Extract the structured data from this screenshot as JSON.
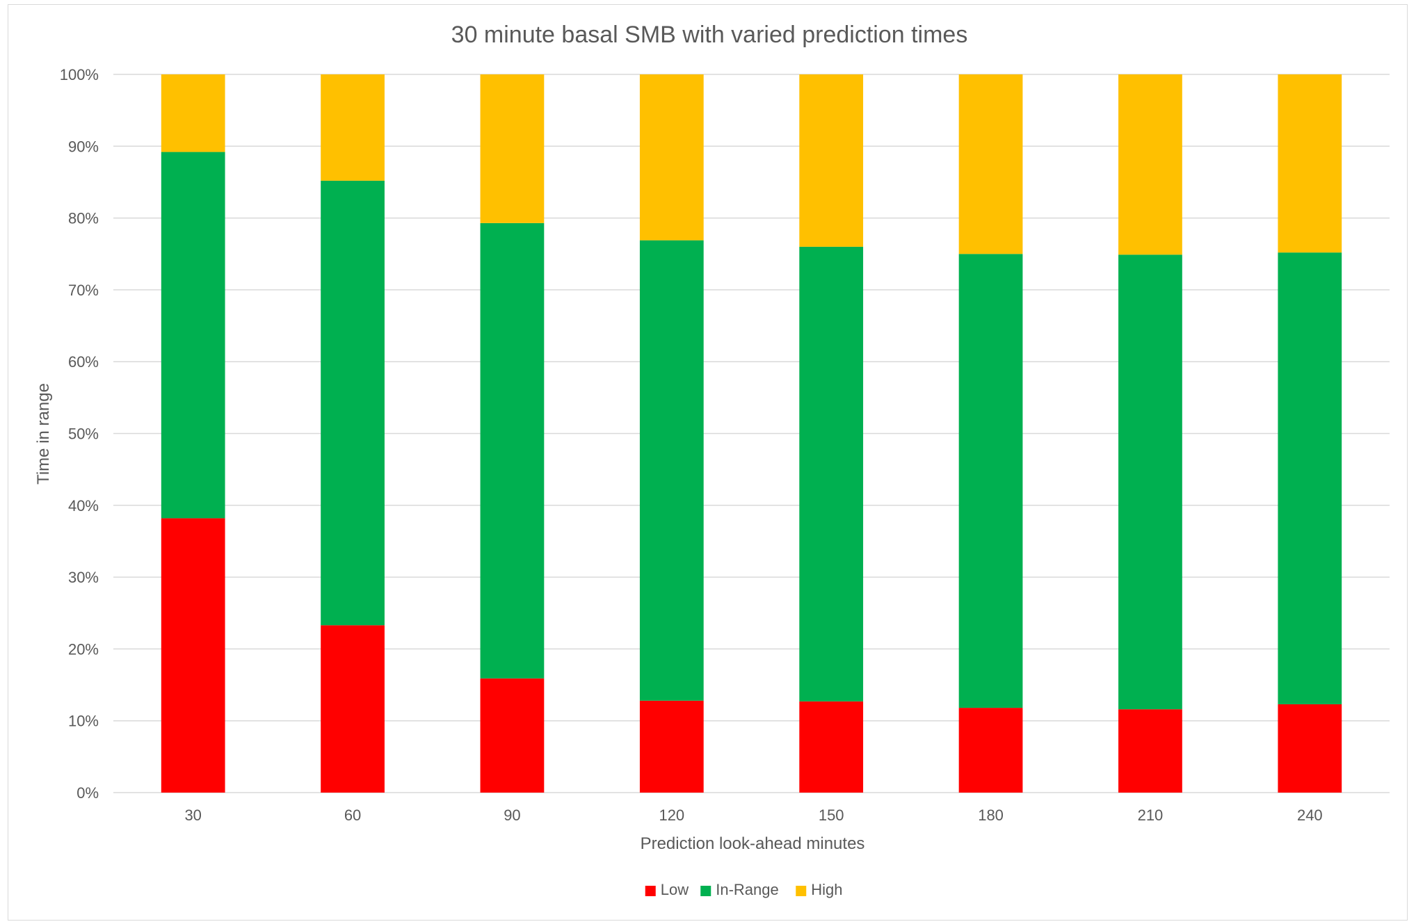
{
  "chart_data": {
    "type": "bar",
    "stacked": true,
    "percent_stacked": true,
    "title": "30 minute basal SMB with varied prediction times",
    "xlabel": "Prediction look-ahead minutes",
    "ylabel": "Time in range",
    "categories": [
      "30",
      "60",
      "90",
      "120",
      "150",
      "180",
      "210",
      "240"
    ],
    "series": [
      {
        "name": "Low",
        "color": "#ff0000",
        "values": [
          38.2,
          23.3,
          15.9,
          12.8,
          12.7,
          11.8,
          11.6,
          12.3
        ]
      },
      {
        "name": "In-Range",
        "color": "#00b050",
        "values": [
          51.0,
          61.9,
          63.4,
          64.1,
          63.3,
          63.2,
          63.3,
          62.9
        ]
      },
      {
        "name": "High",
        "color": "#ffc000",
        "values": [
          10.8,
          14.8,
          20.7,
          23.1,
          24.0,
          25.0,
          25.1,
          24.8
        ]
      }
    ],
    "ylim": [
      0,
      100
    ],
    "yticks": [
      "0%",
      "10%",
      "20%",
      "30%",
      "40%",
      "50%",
      "60%",
      "70%",
      "80%",
      "90%",
      "100%"
    ],
    "grid": true,
    "legend_position": "bottom"
  }
}
